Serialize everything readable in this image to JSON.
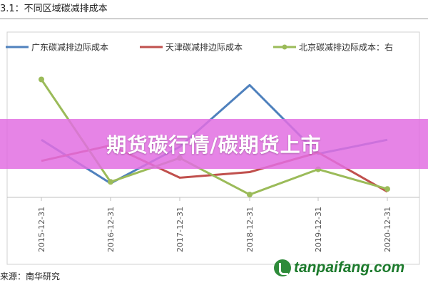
{
  "figure_title": "3.1：不同区域碳减排成本",
  "source_text": "来源：南华研究",
  "banner_text": "期货碳行情/碳期货上市",
  "watermark_text": "tanpaifang.com",
  "chart_data": {
    "type": "line",
    "title": "",
    "xlabel": "",
    "ylabel": "",
    "categories": [
      "2015-12-31",
      "2016-12-31",
      "2017-12-31",
      "2018-12-31",
      "2019-12-31",
      "2020-12-31"
    ],
    "ylim": [
      0,
      100
    ],
    "grid": false,
    "legend_position": "top",
    "series": [
      {
        "name": "广东碳减排边际成本",
        "color": "#4f81bd",
        "values": [
          41,
          10,
          36,
          80,
          31,
          41
        ]
      },
      {
        "name": "天津碳减排边际成本",
        "color": "#c0504d",
        "values": [
          26,
          37,
          14,
          18,
          32,
          4
        ]
      },
      {
        "name": "北京碳减排边际成本：右",
        "color": "#9bbb59",
        "values": [
          84,
          11,
          28,
          2,
          20,
          6
        ]
      }
    ]
  }
}
